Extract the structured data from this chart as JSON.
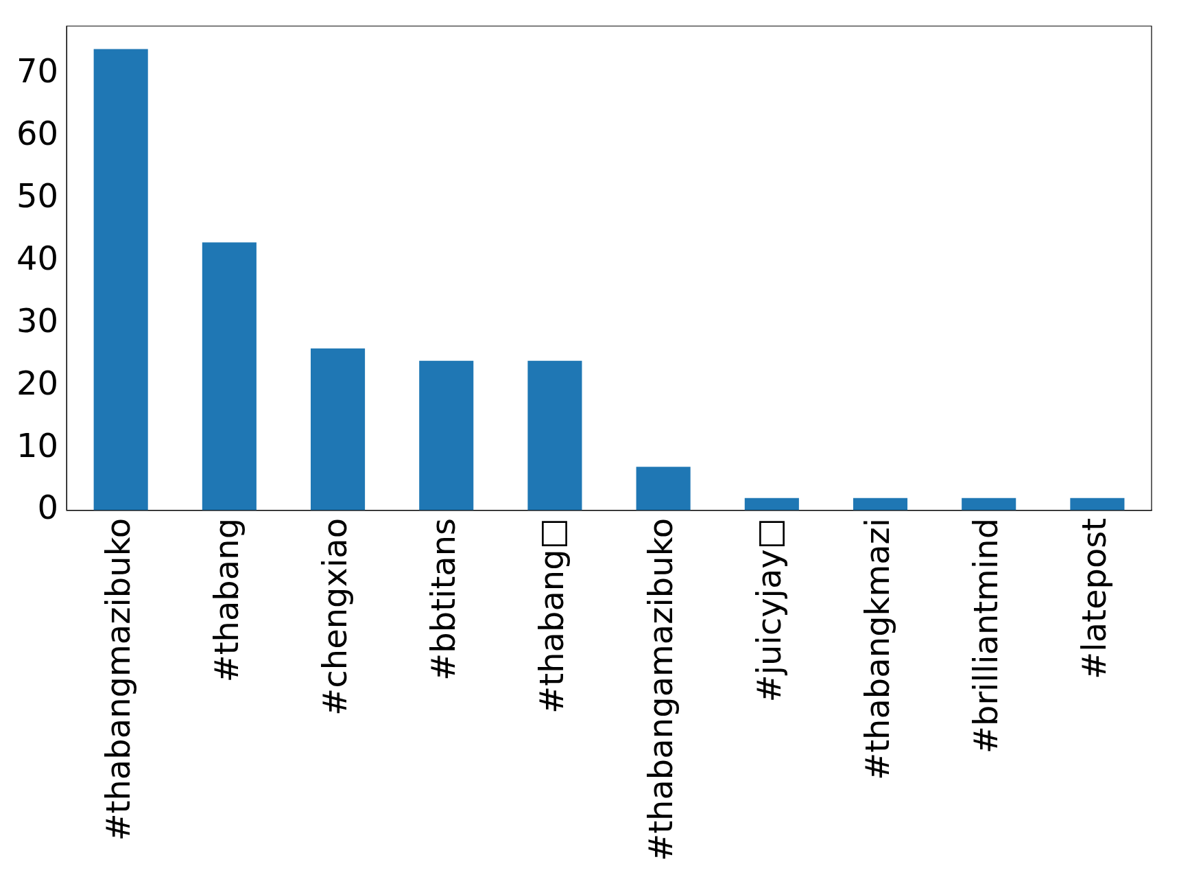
{
  "chart_data": {
    "type": "bar",
    "categories": [
      "#thabangmazibuko",
      "#thabang",
      "#chengxiao",
      "#bbtitans",
      "#thabang□",
      "#thabangamazibuko",
      "#juicyjay□",
      "#thabangkmazi",
      "#brilliantmind",
      "#latepost"
    ],
    "values": [
      74,
      43,
      26,
      24,
      24,
      7,
      2,
      2,
      2,
      2
    ],
    "color": "#1f77b4",
    "ylim": [
      0,
      77.7
    ],
    "yticks": [
      0,
      10,
      20,
      30,
      40,
      50,
      60,
      70
    ],
    "grid": false,
    "legend": false
  }
}
